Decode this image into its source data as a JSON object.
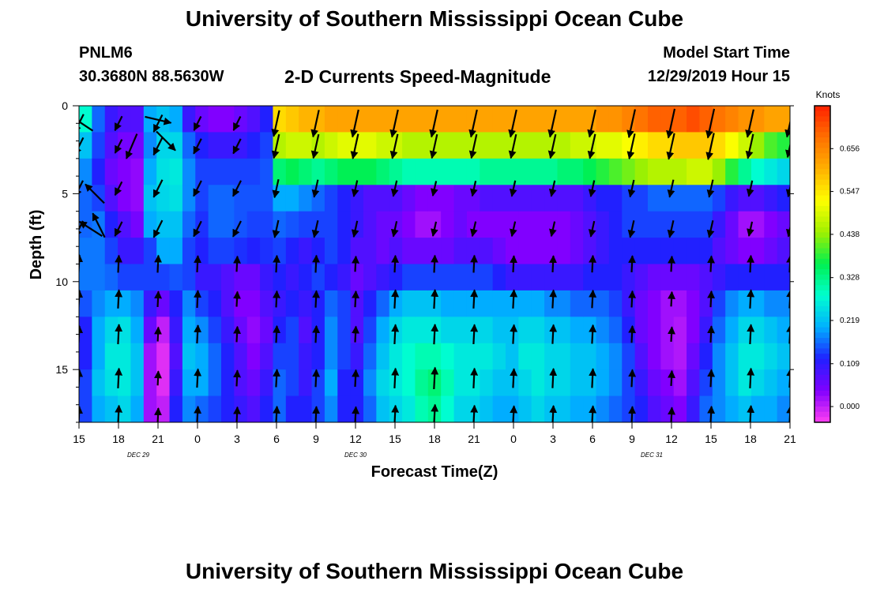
{
  "header": {
    "title": "University of Southern Mississippi Ocean Cube",
    "station": "PNLM6",
    "coordinates": "30.3680N 88.5630W",
    "subtitle": "2-D Currents Speed-Magnitude",
    "model_start_label": "Model Start Time",
    "model_start_value": "12/29/2019 Hour 15"
  },
  "footer": {
    "title": "University of Southern Mississippi Ocean Cube"
  },
  "chart_data": {
    "type": "heatmap",
    "xlabel": "Forecast Time(Z)",
    "ylabel": "Depth (ft)",
    "x_tick_labels": [
      "15",
      "18",
      "21",
      "0",
      "3",
      "6",
      "9",
      "12",
      "15",
      "18",
      "21",
      "0",
      "3",
      "6",
      "9",
      "12",
      "15",
      "18",
      "21"
    ],
    "date_labels": [
      {
        "label": "DEC 29",
        "x_index": 1.5
      },
      {
        "label": "DEC 30",
        "x_index": 7
      },
      {
        "label": "DEC 31",
        "x_index": 14.5
      }
    ],
    "y_ticks": [
      0,
      5,
      10,
      15
    ],
    "ylim": [
      0,
      18
    ],
    "y_inverted": true,
    "colorbar": {
      "unit": "Knots",
      "tick_labels": [
        "0.000",
        "0.109",
        "0.219",
        "0.328",
        "0.438",
        "0.547",
        "0.656"
      ],
      "range": [
        0,
        0.765
      ],
      "colors": [
        "#ff3ff2",
        "#8000ff",
        "#2020ff",
        "#00b0ff",
        "#00ffd0",
        "#00f050",
        "#a0f000",
        "#ffff00",
        "#ffb000",
        "#ff7000",
        "#ff2000"
      ]
    },
    "depth_levels": [
      0.5,
      2,
      3.5,
      5,
      6.5,
      8,
      9.5,
      11,
      12.5,
      14,
      15.5,
      17
    ],
    "columns": [
      {
        "x": 15,
        "s": [
          0.28,
          0.22,
          0.18,
          0.16,
          0.16,
          0.17,
          0.17,
          0.15,
          0.12,
          0.12,
          0.14,
          0.14
        ]
      },
      {
        "x": 16,
        "s": [
          0.16,
          0.14,
          0.12,
          0.14,
          0.17,
          0.17,
          0.17,
          0.18,
          0.2,
          0.2,
          0.22,
          0.2
        ]
      },
      {
        "x": 17,
        "s": [
          0.1,
          0.08,
          0.06,
          0.08,
          0.12,
          0.14,
          0.16,
          0.2,
          0.24,
          0.26,
          0.25,
          0.22
        ]
      },
      {
        "x": 18,
        "s": [
          0.08,
          0.05,
          0.04,
          0.04,
          0.08,
          0.1,
          0.14,
          0.2,
          0.25,
          0.26,
          0.26,
          0.24
        ]
      },
      {
        "x": 19,
        "s": [
          0.08,
          0.05,
          0.03,
          0.03,
          0.05,
          0.1,
          0.14,
          0.18,
          0.2,
          0.22,
          0.22,
          0.2
        ]
      },
      {
        "x": 20,
        "s": [
          0.2,
          0.18,
          0.2,
          0.22,
          0.2,
          0.14,
          0.14,
          0.1,
          0.06,
          0.02,
          0.02,
          0.02
        ]
      },
      {
        "x": 21,
        "s": [
          0.22,
          0.24,
          0.25,
          0.24,
          0.22,
          0.2,
          0.14,
          0.06,
          0.0,
          -0.02,
          -0.02,
          0.0
        ]
      },
      {
        "x": 22,
        "s": [
          0.2,
          0.24,
          0.26,
          0.25,
          0.22,
          0.2,
          0.15,
          0.12,
          0.1,
          0.08,
          0.1,
          0.12
        ]
      },
      {
        "x": 23,
        "s": [
          0.1,
          0.16,
          0.18,
          0.18,
          0.16,
          0.14,
          0.14,
          0.18,
          0.2,
          0.22,
          0.2,
          0.18
        ]
      },
      {
        "x": 0,
        "s": [
          0.06,
          0.12,
          0.14,
          0.14,
          0.13,
          0.12,
          0.1,
          0.14,
          0.18,
          0.2,
          0.2,
          0.16
        ]
      },
      {
        "x": 1,
        "s": [
          0.04,
          0.1,
          0.14,
          0.16,
          0.16,
          0.14,
          0.1,
          0.12,
          0.14,
          0.16,
          0.16,
          0.14
        ]
      },
      {
        "x": 2,
        "s": [
          0.04,
          0.1,
          0.14,
          0.16,
          0.16,
          0.14,
          0.08,
          0.08,
          0.1,
          0.12,
          0.12,
          0.12
        ]
      },
      {
        "x": 3,
        "s": [
          0.06,
          0.1,
          0.14,
          0.15,
          0.15,
          0.13,
          0.06,
          0.04,
          0.06,
          0.08,
          0.08,
          0.1
        ]
      },
      {
        "x": 4,
        "s": [
          0.08,
          0.12,
          0.14,
          0.15,
          0.14,
          0.12,
          0.06,
          0.04,
          0.03,
          0.04,
          0.06,
          0.08
        ]
      },
      {
        "x": 5,
        "s": [
          0.12,
          0.14,
          0.15,
          0.15,
          0.14,
          0.13,
          0.1,
          0.08,
          0.06,
          0.08,
          0.1,
          0.12
        ]
      },
      {
        "x": 6,
        "s": [
          0.56,
          0.46,
          0.34,
          0.2,
          0.16,
          0.14,
          0.12,
          0.1,
          0.12,
          0.14,
          0.16,
          0.16
        ]
      },
      {
        "x": 7,
        "s": [
          0.58,
          0.48,
          0.36,
          0.2,
          0.15,
          0.12,
          0.1,
          0.12,
          0.14,
          0.14,
          0.14,
          0.12
        ]
      },
      {
        "x": 8,
        "s": [
          0.6,
          0.48,
          0.34,
          0.18,
          0.14,
          0.1,
          0.12,
          0.1,
          0.08,
          0.1,
          0.1,
          0.12
        ]
      },
      {
        "x": 9,
        "s": [
          0.6,
          0.46,
          0.32,
          0.16,
          0.14,
          0.12,
          0.14,
          0.12,
          0.12,
          0.12,
          0.14,
          0.14
        ]
      },
      {
        "x": 10,
        "s": [
          0.62,
          0.48,
          0.34,
          0.14,
          0.14,
          0.14,
          0.12,
          0.16,
          0.18,
          0.18,
          0.2,
          0.18
        ]
      },
      {
        "x": 11,
        "s": [
          0.62,
          0.5,
          0.36,
          0.12,
          0.12,
          0.12,
          0.1,
          0.14,
          0.14,
          0.14,
          0.12,
          0.12
        ]
      },
      {
        "x": 12,
        "s": [
          0.62,
          0.5,
          0.36,
          0.1,
          0.1,
          0.08,
          0.06,
          0.08,
          0.08,
          0.1,
          0.12,
          0.12
        ]
      },
      {
        "x": 13,
        "s": [
          0.62,
          0.5,
          0.36,
          0.08,
          0.08,
          0.08,
          0.08,
          0.12,
          0.14,
          0.16,
          0.18,
          0.16
        ]
      },
      {
        "x": 14,
        "s": [
          0.62,
          0.48,
          0.34,
          0.08,
          0.06,
          0.06,
          0.1,
          0.16,
          0.2,
          0.22,
          0.24,
          0.22
        ]
      },
      {
        "x": 15,
        "s": [
          0.62,
          0.48,
          0.32,
          0.08,
          0.06,
          0.08,
          0.12,
          0.2,
          0.24,
          0.26,
          0.26,
          0.24
        ]
      },
      {
        "x": 16,
        "s": [
          0.62,
          0.46,
          0.3,
          0.06,
          0.04,
          0.06,
          0.14,
          0.22,
          0.26,
          0.28,
          0.28,
          0.26
        ]
      },
      {
        "x": 17,
        "s": [
          0.62,
          0.46,
          0.3,
          0.04,
          0.02,
          0.06,
          0.14,
          0.22,
          0.26,
          0.3,
          0.32,
          0.3
        ]
      },
      {
        "x": 18,
        "s": [
          0.62,
          0.46,
          0.3,
          0.04,
          0.02,
          0.06,
          0.14,
          0.22,
          0.26,
          0.3,
          0.34,
          0.32
        ]
      },
      {
        "x": 19,
        "s": [
          0.62,
          0.46,
          0.3,
          0.04,
          0.04,
          0.06,
          0.14,
          0.2,
          0.24,
          0.28,
          0.3,
          0.28
        ]
      },
      {
        "x": 20,
        "s": [
          0.62,
          0.46,
          0.3,
          0.06,
          0.06,
          0.08,
          0.14,
          0.2,
          0.24,
          0.26,
          0.26,
          0.24
        ]
      },
      {
        "x": 21,
        "s": [
          0.62,
          0.46,
          0.3,
          0.06,
          0.04,
          0.08,
          0.14,
          0.2,
          0.24,
          0.26,
          0.26,
          0.24
        ]
      },
      {
        "x": 22,
        "s": [
          0.62,
          0.46,
          0.32,
          0.08,
          0.04,
          0.08,
          0.14,
          0.2,
          0.24,
          0.26,
          0.24,
          0.22
        ]
      },
      {
        "x": 23,
        "s": [
          0.62,
          0.46,
          0.32,
          0.08,
          0.04,
          0.06,
          0.12,
          0.2,
          0.22,
          0.24,
          0.22,
          0.2
        ]
      },
      {
        "x": 0,
        "s": [
          0.62,
          0.46,
          0.32,
          0.08,
          0.04,
          0.04,
          0.1,
          0.2,
          0.22,
          0.22,
          0.22,
          0.2
        ]
      },
      {
        "x": 1,
        "s": [
          0.62,
          0.46,
          0.32,
          0.08,
          0.04,
          0.04,
          0.1,
          0.2,
          0.24,
          0.26,
          0.24,
          0.22
        ]
      },
      {
        "x": 2,
        "s": [
          0.62,
          0.46,
          0.32,
          0.08,
          0.04,
          0.04,
          0.1,
          0.2,
          0.24,
          0.26,
          0.26,
          0.24
        ]
      },
      {
        "x": 3,
        "s": [
          0.62,
          0.46,
          0.32,
          0.08,
          0.04,
          0.04,
          0.1,
          0.18,
          0.22,
          0.24,
          0.24,
          0.22
        ]
      },
      {
        "x": 4,
        "s": [
          0.62,
          0.46,
          0.34,
          0.08,
          0.04,
          0.04,
          0.1,
          0.18,
          0.22,
          0.24,
          0.24,
          0.22
        ]
      },
      {
        "x": 5,
        "s": [
          0.62,
          0.48,
          0.34,
          0.08,
          0.06,
          0.06,
          0.1,
          0.16,
          0.2,
          0.22,
          0.22,
          0.2
        ]
      },
      {
        "x": 6,
        "s": [
          0.62,
          0.48,
          0.36,
          0.1,
          0.08,
          0.08,
          0.12,
          0.16,
          0.2,
          0.22,
          0.22,
          0.2
        ]
      },
      {
        "x": 7,
        "s": [
          0.64,
          0.5,
          0.38,
          0.12,
          0.1,
          0.1,
          0.12,
          0.16,
          0.18,
          0.2,
          0.2,
          0.18
        ]
      },
      {
        "x": 8,
        "s": [
          0.64,
          0.5,
          0.4,
          0.12,
          0.12,
          0.12,
          0.12,
          0.14,
          0.16,
          0.18,
          0.18,
          0.16
        ]
      },
      {
        "x": 9,
        "s": [
          0.66,
          0.52,
          0.42,
          0.14,
          0.14,
          0.12,
          0.1,
          0.1,
          0.12,
          0.14,
          0.14,
          0.14
        ]
      },
      {
        "x": 10,
        "s": [
          0.68,
          0.54,
          0.44,
          0.14,
          0.14,
          0.12,
          0.08,
          0.06,
          0.06,
          0.08,
          0.1,
          0.12
        ]
      },
      {
        "x": 11,
        "s": [
          0.7,
          0.56,
          0.46,
          0.16,
          0.14,
          0.12,
          0.06,
          0.04,
          0.04,
          0.04,
          0.06,
          0.08
        ]
      },
      {
        "x": 12,
        "s": [
          0.7,
          0.56,
          0.46,
          0.16,
          0.14,
          0.12,
          0.06,
          0.02,
          0.02,
          0.02,
          0.04,
          0.06
        ]
      },
      {
        "x": 13,
        "s": [
          0.7,
          0.58,
          0.46,
          0.16,
          0.14,
          0.12,
          0.06,
          0.02,
          0.01,
          0.01,
          0.02,
          0.04
        ]
      },
      {
        "x": 14,
        "s": [
          0.72,
          0.58,
          0.48,
          0.16,
          0.14,
          0.12,
          0.06,
          0.04,
          0.04,
          0.06,
          0.08,
          0.1
        ]
      },
      {
        "x": 15,
        "s": [
          0.7,
          0.58,
          0.48,
          0.16,
          0.14,
          0.12,
          0.08,
          0.08,
          0.1,
          0.12,
          0.14,
          0.16
        ]
      },
      {
        "x": 16,
        "s": [
          0.68,
          0.56,
          0.44,
          0.14,
          0.1,
          0.08,
          0.1,
          0.14,
          0.16,
          0.18,
          0.18,
          0.18
        ]
      },
      {
        "x": 17,
        "s": [
          0.66,
          0.52,
          0.38,
          0.1,
          0.06,
          0.06,
          0.12,
          0.18,
          0.2,
          0.22,
          0.22,
          0.2
        ]
      },
      {
        "x": 18,
        "s": [
          0.64,
          0.48,
          0.32,
          0.08,
          0.02,
          0.04,
          0.12,
          0.2,
          0.24,
          0.26,
          0.26,
          0.22
        ]
      },
      {
        "x": 19,
        "s": [
          0.64,
          0.44,
          0.28,
          0.08,
          0.02,
          0.04,
          0.12,
          0.2,
          0.24,
          0.26,
          0.24,
          0.2
        ]
      },
      {
        "x": 20,
        "s": [
          0.62,
          0.4,
          0.26,
          0.1,
          0.04,
          0.06,
          0.12,
          0.18,
          0.22,
          0.24,
          0.22,
          0.2
        ]
      },
      {
        "x": 21,
        "s": [
          0.62,
          0.38,
          0.24,
          0.12,
          0.06,
          0.08,
          0.12,
          0.18,
          0.2,
          0.22,
          0.2,
          0.18
        ]
      }
    ],
    "arrows": [
      {
        "x": 21,
        "d": 0.8,
        "u": 1.7,
        "v": -0.4
      },
      {
        "x": 15.2,
        "d": 1,
        "u": -1.2,
        "v": 0.8
      },
      {
        "x": 19,
        "d": 2.3,
        "u": -0.6,
        "v": -1.4
      },
      {
        "x": 21.6,
        "d": 2,
        "u": 1,
        "v": -1
      },
      {
        "x": 15.9,
        "d": 7,
        "u": -1.1,
        "v": 0.7
      },
      {
        "x": 16.2,
        "d": 5,
        "u": -0.9,
        "v": 0.9
      },
      {
        "x": 16.5,
        "d": 6.8,
        "u": -0.6,
        "v": 1.2
      }
    ]
  }
}
